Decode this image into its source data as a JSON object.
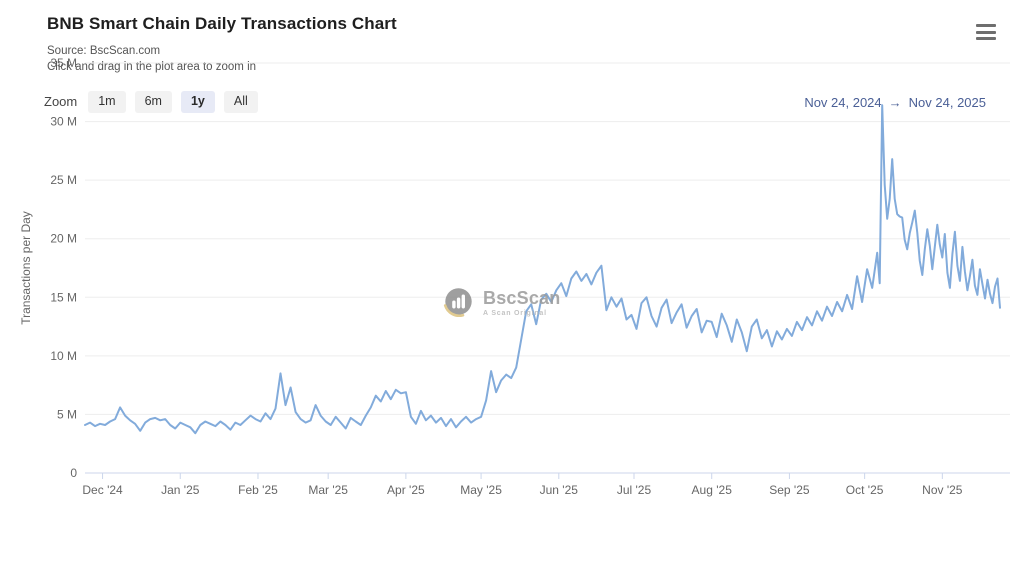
{
  "header": {
    "title": "BNB Smart Chain Daily Transactions Chart",
    "source_line": "Source: BscScan.com",
    "hint_line": "Click and drag in the plot area to zoom in"
  },
  "toolbar": {
    "zoom_label": "Zoom",
    "buttons": [
      {
        "label": "1m",
        "active": false
      },
      {
        "label": "6m",
        "active": false
      },
      {
        "label": "1y",
        "active": true
      },
      {
        "label": "All",
        "active": false
      }
    ],
    "date_range": {
      "from": "Nov 24, 2024",
      "arrow": "→",
      "to": "Nov 24, 2025"
    }
  },
  "watermark": {
    "brand": "BscScan",
    "tagline": "A Scan Original",
    "logo_color": "#8f8f8f",
    "crescent_color": "#dcc27e"
  },
  "colors": {
    "line": "#82abdb",
    "grid": "#ededed",
    "axis": "#ccd6eb",
    "tick_label": "#666666",
    "date_range_text": "#4a5f96"
  },
  "chart_data": {
    "type": "line",
    "title": "BNB Smart Chain Daily Transactions Chart",
    "subtitle": "Source: BscScan.com",
    "xlabel": "",
    "ylabel": "Transactions per Day",
    "unit": "M",
    "ylim": [
      0,
      35
    ],
    "grid": true,
    "legend": "none",
    "x_range": [
      "2024-11-24",
      "2025-11-24"
    ],
    "yticks": [
      {
        "value": 0,
        "label": "0"
      },
      {
        "value": 5,
        "label": "5 M"
      },
      {
        "value": 10,
        "label": "10 M"
      },
      {
        "value": 15,
        "label": "15 M"
      },
      {
        "value": 20,
        "label": "20 M"
      },
      {
        "value": 25,
        "label": "25 M"
      },
      {
        "value": 30,
        "label": "30 M"
      },
      {
        "value": 35,
        "label": "35 M"
      }
    ],
    "xticks": [
      {
        "date": "2024-12-01",
        "label": "Dec '24"
      },
      {
        "date": "2025-01-01",
        "label": "Jan '25"
      },
      {
        "date": "2025-02-01",
        "label": "Feb '25"
      },
      {
        "date": "2025-03-01",
        "label": "Mar '25"
      },
      {
        "date": "2025-04-01",
        "label": "Apr '25"
      },
      {
        "date": "2025-05-01",
        "label": "May '25"
      },
      {
        "date": "2025-06-01",
        "label": "Jun '25"
      },
      {
        "date": "2025-07-01",
        "label": "Jul '25"
      },
      {
        "date": "2025-08-01",
        "label": "Aug '25"
      },
      {
        "date": "2025-09-01",
        "label": "Sep '25"
      },
      {
        "date": "2025-10-01",
        "label": "Oct '25"
      },
      {
        "date": "2025-11-01",
        "label": "Nov '25"
      }
    ],
    "series": [
      {
        "name": "Transactions per Day",
        "unit_scale": "millions",
        "points": [
          [
            "2024-11-24",
            4.1
          ],
          [
            "2024-11-26",
            4.3
          ],
          [
            "2024-11-28",
            4.0
          ],
          [
            "2024-11-30",
            4.2
          ],
          [
            "2024-12-02",
            4.1
          ],
          [
            "2024-12-04",
            4.4
          ],
          [
            "2024-12-06",
            4.6
          ],
          [
            "2024-12-08",
            5.6
          ],
          [
            "2024-12-10",
            4.9
          ],
          [
            "2024-12-12",
            4.5
          ],
          [
            "2024-12-14",
            4.2
          ],
          [
            "2024-12-16",
            3.6
          ],
          [
            "2024-12-18",
            4.3
          ],
          [
            "2024-12-20",
            4.6
          ],
          [
            "2024-12-22",
            4.7
          ],
          [
            "2024-12-24",
            4.5
          ],
          [
            "2024-12-26",
            4.6
          ],
          [
            "2024-12-28",
            4.1
          ],
          [
            "2024-12-30",
            3.8
          ],
          [
            "2025-01-01",
            4.3
          ],
          [
            "2025-01-03",
            4.1
          ],
          [
            "2025-01-05",
            3.9
          ],
          [
            "2025-01-07",
            3.4
          ],
          [
            "2025-01-09",
            4.1
          ],
          [
            "2025-01-11",
            4.4
          ],
          [
            "2025-01-13",
            4.2
          ],
          [
            "2025-01-15",
            4.0
          ],
          [
            "2025-01-17",
            4.4
          ],
          [
            "2025-01-19",
            4.1
          ],
          [
            "2025-01-21",
            3.7
          ],
          [
            "2025-01-23",
            4.3
          ],
          [
            "2025-01-25",
            4.1
          ],
          [
            "2025-01-27",
            4.5
          ],
          [
            "2025-01-29",
            4.9
          ],
          [
            "2025-01-31",
            4.6
          ],
          [
            "2025-02-02",
            4.4
          ],
          [
            "2025-02-04",
            5.1
          ],
          [
            "2025-02-06",
            4.6
          ],
          [
            "2025-02-08",
            5.5
          ],
          [
            "2025-02-10",
            8.5
          ],
          [
            "2025-02-12",
            5.8
          ],
          [
            "2025-02-14",
            7.3
          ],
          [
            "2025-02-16",
            5.2
          ],
          [
            "2025-02-18",
            4.6
          ],
          [
            "2025-02-20",
            4.3
          ],
          [
            "2025-02-22",
            4.5
          ],
          [
            "2025-02-24",
            5.8
          ],
          [
            "2025-02-26",
            4.9
          ],
          [
            "2025-02-28",
            4.4
          ],
          [
            "2025-03-02",
            4.1
          ],
          [
            "2025-03-04",
            4.8
          ],
          [
            "2025-03-06",
            4.3
          ],
          [
            "2025-03-08",
            3.8
          ],
          [
            "2025-03-10",
            4.7
          ],
          [
            "2025-03-12",
            4.4
          ],
          [
            "2025-03-14",
            4.1
          ],
          [
            "2025-03-16",
            4.9
          ],
          [
            "2025-03-18",
            5.6
          ],
          [
            "2025-03-20",
            6.6
          ],
          [
            "2025-03-22",
            6.1
          ],
          [
            "2025-03-24",
            7.0
          ],
          [
            "2025-03-26",
            6.3
          ],
          [
            "2025-03-28",
            7.1
          ],
          [
            "2025-03-30",
            6.8
          ],
          [
            "2025-04-01",
            6.9
          ],
          [
            "2025-04-03",
            4.8
          ],
          [
            "2025-04-05",
            4.2
          ],
          [
            "2025-04-07",
            5.3
          ],
          [
            "2025-04-09",
            4.5
          ],
          [
            "2025-04-11",
            4.9
          ],
          [
            "2025-04-13",
            4.3
          ],
          [
            "2025-04-15",
            4.7
          ],
          [
            "2025-04-17",
            4.0
          ],
          [
            "2025-04-19",
            4.6
          ],
          [
            "2025-04-21",
            3.9
          ],
          [
            "2025-04-23",
            4.4
          ],
          [
            "2025-04-25",
            4.8
          ],
          [
            "2025-04-27",
            4.3
          ],
          [
            "2025-04-29",
            4.6
          ],
          [
            "2025-05-01",
            4.8
          ],
          [
            "2025-05-03",
            6.2
          ],
          [
            "2025-05-05",
            8.7
          ],
          [
            "2025-05-07",
            6.9
          ],
          [
            "2025-05-09",
            7.9
          ],
          [
            "2025-05-11",
            8.4
          ],
          [
            "2025-05-13",
            8.1
          ],
          [
            "2025-05-15",
            9.0
          ],
          [
            "2025-05-17",
            11.4
          ],
          [
            "2025-05-19",
            13.8
          ],
          [
            "2025-05-21",
            14.4
          ],
          [
            "2025-05-23",
            12.7
          ],
          [
            "2025-05-25",
            14.8
          ],
          [
            "2025-05-27",
            15.3
          ],
          [
            "2025-05-29",
            14.6
          ],
          [
            "2025-05-31",
            15.6
          ],
          [
            "2025-06-02",
            16.2
          ],
          [
            "2025-06-04",
            15.1
          ],
          [
            "2025-06-06",
            16.6
          ],
          [
            "2025-06-08",
            17.2
          ],
          [
            "2025-06-10",
            16.4
          ],
          [
            "2025-06-12",
            17.0
          ],
          [
            "2025-06-14",
            16.1
          ],
          [
            "2025-06-16",
            17.1
          ],
          [
            "2025-06-18",
            17.7
          ],
          [
            "2025-06-20",
            13.9
          ],
          [
            "2025-06-22",
            15.0
          ],
          [
            "2025-06-24",
            14.2
          ],
          [
            "2025-06-26",
            14.9
          ],
          [
            "2025-06-28",
            13.1
          ],
          [
            "2025-06-30",
            13.5
          ],
          [
            "2025-07-02",
            12.3
          ],
          [
            "2025-07-04",
            14.5
          ],
          [
            "2025-07-06",
            15.0
          ],
          [
            "2025-07-08",
            13.4
          ],
          [
            "2025-07-10",
            12.5
          ],
          [
            "2025-07-12",
            14.1
          ],
          [
            "2025-07-14",
            14.8
          ],
          [
            "2025-07-16",
            12.8
          ],
          [
            "2025-07-18",
            13.7
          ],
          [
            "2025-07-20",
            14.4
          ],
          [
            "2025-07-22",
            12.4
          ],
          [
            "2025-07-24",
            13.4
          ],
          [
            "2025-07-26",
            14.0
          ],
          [
            "2025-07-28",
            12.0
          ],
          [
            "2025-07-30",
            13.0
          ],
          [
            "2025-08-01",
            12.9
          ],
          [
            "2025-08-03",
            11.6
          ],
          [
            "2025-08-05",
            13.6
          ],
          [
            "2025-08-07",
            12.6
          ],
          [
            "2025-08-09",
            11.2
          ],
          [
            "2025-08-11",
            13.1
          ],
          [
            "2025-08-13",
            12.0
          ],
          [
            "2025-08-15",
            10.4
          ],
          [
            "2025-08-17",
            12.5
          ],
          [
            "2025-08-19",
            13.1
          ],
          [
            "2025-08-21",
            11.5
          ],
          [
            "2025-08-23",
            12.2
          ],
          [
            "2025-08-25",
            10.8
          ],
          [
            "2025-08-27",
            12.1
          ],
          [
            "2025-08-29",
            11.4
          ],
          [
            "2025-08-31",
            12.3
          ],
          [
            "2025-09-02",
            11.7
          ],
          [
            "2025-09-04",
            12.9
          ],
          [
            "2025-09-06",
            12.2
          ],
          [
            "2025-09-08",
            13.3
          ],
          [
            "2025-09-10",
            12.6
          ],
          [
            "2025-09-12",
            13.8
          ],
          [
            "2025-09-14",
            13.0
          ],
          [
            "2025-09-16",
            14.2
          ],
          [
            "2025-09-18",
            13.4
          ],
          [
            "2025-09-20",
            14.6
          ],
          [
            "2025-09-22",
            13.8
          ],
          [
            "2025-09-24",
            15.2
          ],
          [
            "2025-09-26",
            14.0
          ],
          [
            "2025-09-28",
            16.8
          ],
          [
            "2025-09-30",
            14.6
          ],
          [
            "2025-10-02",
            17.4
          ],
          [
            "2025-10-04",
            15.8
          ],
          [
            "2025-10-06",
            18.8
          ],
          [
            "2025-10-07",
            16.2
          ],
          [
            "2025-10-08",
            31.4
          ],
          [
            "2025-10-09",
            24.6
          ],
          [
            "2025-10-10",
            21.7
          ],
          [
            "2025-10-11",
            23.4
          ],
          [
            "2025-10-12",
            26.8
          ],
          [
            "2025-10-13",
            23.4
          ],
          [
            "2025-10-14",
            22.1
          ],
          [
            "2025-10-15",
            21.9
          ],
          [
            "2025-10-16",
            21.8
          ],
          [
            "2025-10-17",
            19.9
          ],
          [
            "2025-10-18",
            19.1
          ],
          [
            "2025-10-19",
            20.5
          ],
          [
            "2025-10-20",
            21.4
          ],
          [
            "2025-10-21",
            22.4
          ],
          [
            "2025-10-22",
            20.5
          ],
          [
            "2025-10-23",
            18.1
          ],
          [
            "2025-10-24",
            16.9
          ],
          [
            "2025-10-25",
            19.1
          ],
          [
            "2025-10-26",
            20.8
          ],
          [
            "2025-10-27",
            19.4
          ],
          [
            "2025-10-28",
            17.4
          ],
          [
            "2025-10-29",
            19.3
          ],
          [
            "2025-10-30",
            21.2
          ],
          [
            "2025-10-31",
            19.5
          ],
          [
            "2025-11-01",
            18.4
          ],
          [
            "2025-11-02",
            20.4
          ],
          [
            "2025-11-03",
            17.1
          ],
          [
            "2025-11-04",
            15.8
          ],
          [
            "2025-11-05",
            18.7
          ],
          [
            "2025-11-06",
            20.6
          ],
          [
            "2025-11-07",
            17.7
          ],
          [
            "2025-11-08",
            16.4
          ],
          [
            "2025-11-09",
            19.3
          ],
          [
            "2025-11-10",
            17.2
          ],
          [
            "2025-11-11",
            15.6
          ],
          [
            "2025-11-12",
            16.8
          ],
          [
            "2025-11-13",
            18.2
          ],
          [
            "2025-11-14",
            16.0
          ],
          [
            "2025-11-15",
            15.2
          ],
          [
            "2025-11-16",
            17.4
          ],
          [
            "2025-11-17",
            16.1
          ],
          [
            "2025-11-18",
            14.9
          ],
          [
            "2025-11-19",
            16.5
          ],
          [
            "2025-11-20",
            15.3
          ],
          [
            "2025-11-21",
            14.5
          ],
          [
            "2025-11-22",
            15.9
          ],
          [
            "2025-11-23",
            16.6
          ],
          [
            "2025-11-24",
            14.1
          ]
        ]
      }
    ]
  }
}
